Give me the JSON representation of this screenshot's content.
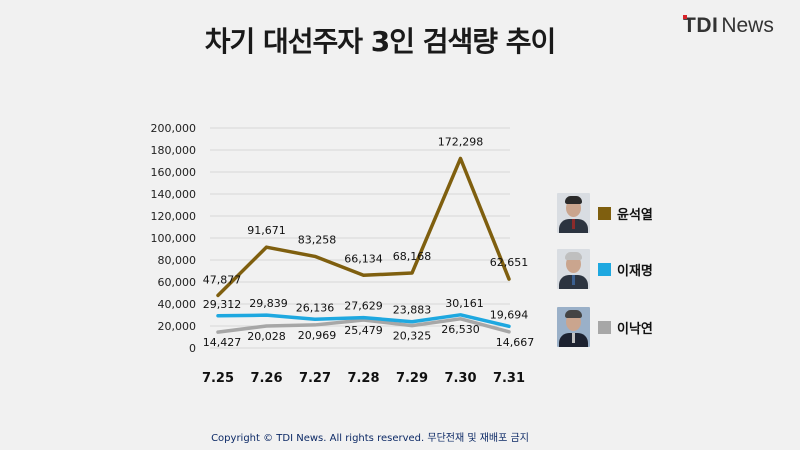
{
  "title": "차기 대선주자 3인 검색량 추이",
  "logo": {
    "tdi": "TDI",
    "news": "News"
  },
  "footer": "Copyright © TDI News. All rights reserved. 무단전재 및 재배포 금지",
  "colors": {
    "series1": "#7f5f0f",
    "series2": "#1ea8e0",
    "series3": "#a7a7a7",
    "grid": "#d8d8d8",
    "text": "#111111"
  },
  "chart_data": {
    "type": "line",
    "categories": [
      "7.25",
      "7.26",
      "7.27",
      "7.28",
      "7.29",
      "7.30",
      "7.31"
    ],
    "ylim": [
      0,
      200000
    ],
    "yticks": [
      0,
      20000,
      40000,
      60000,
      80000,
      100000,
      120000,
      140000,
      160000,
      180000,
      200000
    ],
    "ytick_labels": [
      "0",
      "20,000",
      "40,000",
      "60,000",
      "80,000",
      "100,000",
      "120,000",
      "140,000",
      "160,000",
      "180,000",
      "200,000"
    ],
    "grid": true,
    "legend_position": "right",
    "series": [
      {
        "name": "윤석열",
        "values": [
          47877,
          91671,
          83258,
          66134,
          68168,
          172298,
          62651
        ],
        "labels": [
          "47,877",
          "91,671",
          "83,258",
          "66,134",
          "68,168",
          "172,298",
          "62,651"
        ]
      },
      {
        "name": "이재명",
        "values": [
          29312,
          29839,
          26136,
          27629,
          23883,
          30161,
          19694
        ],
        "labels": [
          "29,312",
          "29,839",
          "26,136",
          "27,629",
          "23,883",
          "30,161",
          "19,694"
        ]
      },
      {
        "name": "이낙연",
        "values": [
          14427,
          20028,
          20969,
          25479,
          20325,
          26530,
          14667
        ],
        "labels": [
          "14,427",
          "20,028",
          "20,969",
          "25,479",
          "20,325",
          "26,530",
          "14,667"
        ]
      }
    ]
  }
}
